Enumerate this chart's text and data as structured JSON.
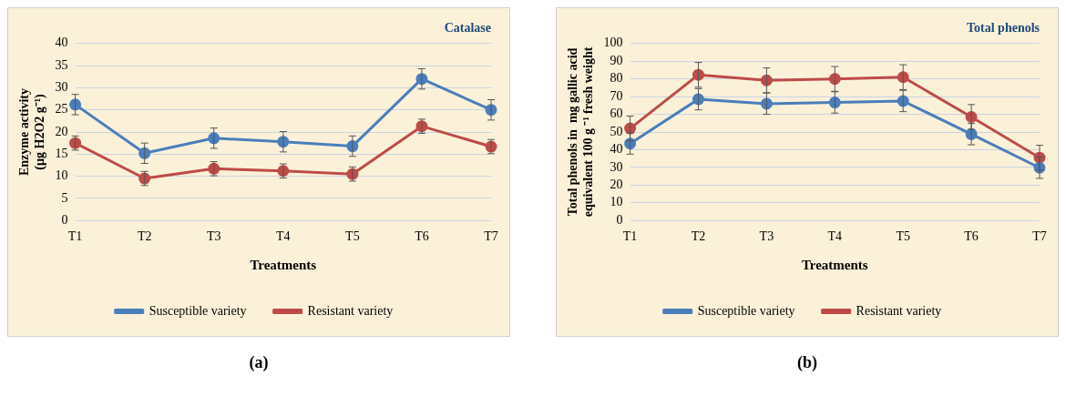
{
  "chart_data": [
    {
      "type": "line",
      "title": "Catalase",
      "xlabel": "Treatments",
      "ylabel": "Enzyme activity\n(µg H2O2 g⁻¹)",
      "categories": [
        "T1",
        "T2",
        "T3",
        "T4",
        "T5",
        "T6",
        "T7"
      ],
      "series": [
        {
          "name": "Susceptible variety",
          "color": "#4a7ebb",
          "values": [
            26.2,
            15.2,
            18.6,
            17.8,
            16.8,
            32,
            25
          ],
          "errors": [
            2.3,
            2.3,
            2.3,
            2.3,
            2.3,
            2.3,
            2.3
          ]
        },
        {
          "name": "Resistant variety",
          "color": "#be4b48",
          "values": [
            17.5,
            9.5,
            11.7,
            11.2,
            10.5,
            21.3,
            16.7
          ],
          "errors": [
            1.6,
            1.6,
            1.6,
            1.6,
            1.6,
            1.6,
            1.6
          ]
        }
      ],
      "ylim": [
        0,
        40
      ],
      "yticks": [
        0,
        5,
        10,
        15,
        20,
        25,
        30,
        35,
        40
      ],
      "grid": "y",
      "legend": "bottom",
      "marker": "circle",
      "annotations": [
        "(a)"
      ]
    },
    {
      "type": "line",
      "title": "Total phenols",
      "xlabel": "Treatments",
      "ylabel": "Total phenols in  mg gallic acid\nequivalent 100 g ⁻¹ fresh weight",
      "categories": [
        "T1",
        "T2",
        "T3",
        "T4",
        "T5",
        "T6",
        "T7"
      ],
      "series": [
        {
          "name": "Susceptible variety",
          "color": "#4a7ebb",
          "values": [
            43.5,
            68.5,
            66,
            66.7,
            67.5,
            48.8,
            29.8
          ],
          "errors": [
            6,
            6,
            6,
            6,
            6,
            6,
            6
          ]
        },
        {
          "name": "Resistant variety",
          "color": "#be4b48",
          "values": [
            52,
            82.3,
            79.2,
            80,
            81,
            58.5,
            35.5
          ],
          "errors": [
            7,
            7,
            7,
            7,
            7,
            7,
            7
          ]
        }
      ],
      "ylim": [
        0,
        100
      ],
      "yticks": [
        0,
        10,
        20,
        30,
        40,
        50,
        60,
        70,
        80,
        90,
        100
      ],
      "grid": "y",
      "legend": "bottom",
      "marker": "circle",
      "annotations": [
        "(b)"
      ]
    }
  ]
}
